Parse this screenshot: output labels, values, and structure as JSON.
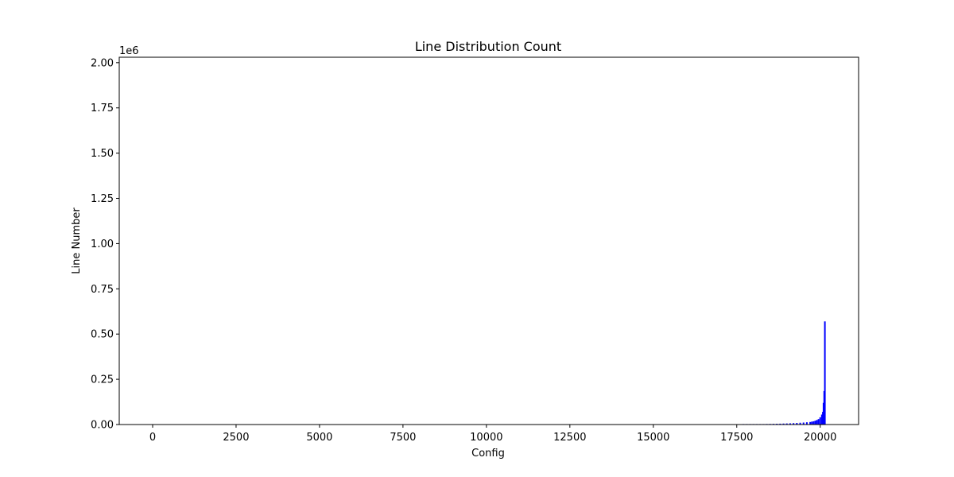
{
  "chart_data": {
    "type": "bar",
    "title": "Line Distribution Count",
    "xlabel": "Config",
    "ylabel": "Line Number",
    "y_offset_label": "1e6",
    "xlim": [
      -1000,
      21150
    ],
    "ylim": [
      0,
      2030000
    ],
    "x_ticks": [
      0,
      2500,
      5000,
      7500,
      10000,
      12500,
      15000,
      17500,
      20000
    ],
    "x_tick_labels": [
      "0",
      "2500",
      "5000",
      "7500",
      "10000",
      "12500",
      "15000",
      "17500",
      "20000"
    ],
    "y_ticks": [
      0,
      250000,
      500000,
      750000,
      1000000,
      1250000,
      1500000,
      1750000,
      2000000
    ],
    "y_tick_labels": [
      "0.00",
      "0.25",
      "0.50",
      "0.75",
      "1.00",
      "1.25",
      "1.50",
      "1.75",
      "2.00"
    ],
    "grid": false,
    "series": [
      {
        "color": "#0000ff",
        "x": [
          17700,
          17800,
          17900,
          18000,
          18100,
          18200,
          18300,
          18400,
          18500,
          18600,
          18700,
          18800,
          18900,
          19000,
          19100,
          19200,
          19300,
          19400,
          19500,
          19600,
          19700,
          19750,
          19800,
          19850,
          19900,
          19950,
          20000,
          20050,
          20080,
          20100,
          20120,
          20140
        ],
        "values": [
          1000,
          1200,
          1500,
          1700,
          2000,
          2300,
          2600,
          3000,
          3400,
          3800,
          4300,
          4800,
          5400,
          6000,
          6800,
          7700,
          8700,
          9800,
          11000,
          12500,
          14000,
          16000,
          18000,
          21000,
          25000,
          30000,
          40000,
          55000,
          70000,
          120000,
          185000,
          570000
        ]
      }
    ]
  }
}
